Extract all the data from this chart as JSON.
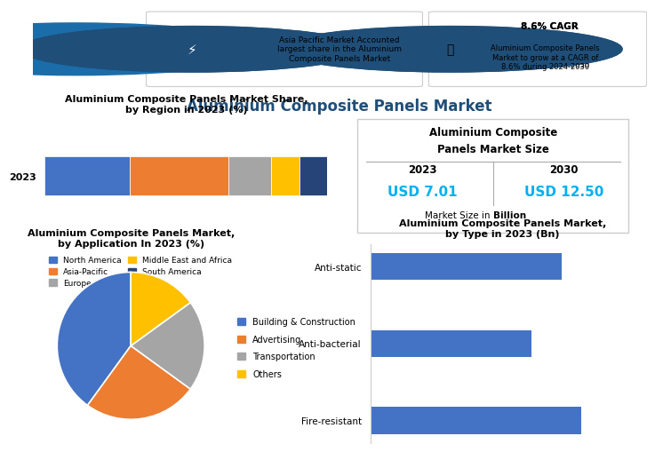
{
  "main_title": "Aluminium Composite Panels Market",
  "main_title_color": "#1F4E79",
  "background_color": "#ffffff",
  "header": {
    "lightning_text": "Asia Pacific Market Accounted\nlargest share in the Aluminium\nComposite Panels Market",
    "cagr_bold": "8.6% CAGR",
    "cagr_text": "Aluminium Composite Panels\nMarket to grow at a CAGR of\n8.6% during 2024-2030",
    "icon_color": "#1F4E79"
  },
  "stacked_bar": {
    "title": "Aluminium Composite Panels Market Share,\nby Region in 2023 (%)",
    "year_label": "2023",
    "segments": [
      {
        "label": "North America",
        "value": 30,
        "color": "#4472C4"
      },
      {
        "label": "Asia-Pacific",
        "value": 35,
        "color": "#ED7D31"
      },
      {
        "label": "Europe",
        "value": 15,
        "color": "#A5A5A5"
      },
      {
        "label": "Middle East and Africa",
        "value": 10,
        "color": "#FFC000"
      },
      {
        "label": "South America",
        "value": 10,
        "color": "#264478"
      }
    ]
  },
  "market_size": {
    "title1": "Aluminium Composite",
    "title2": "Panels Market Size",
    "year1": "2023",
    "year2": "2030",
    "val1": "USD 7.01",
    "val2": "USD 12.50",
    "note_plain": "Market Size in ",
    "note_bold": "Billion",
    "val_color": "#00B0F0"
  },
  "pie_chart": {
    "title": "Aluminium Composite Panels Market,\nby Application In 2023 (%)",
    "slices": [
      {
        "label": "Building & Construction",
        "value": 40,
        "color": "#4472C4"
      },
      {
        "label": "Advertising",
        "value": 25,
        "color": "#ED7D31"
      },
      {
        "label": "Transportation",
        "value": 20,
        "color": "#A5A5A5"
      },
      {
        "label": "Others",
        "value": 15,
        "color": "#FFC000"
      }
    ],
    "startangle": 90
  },
  "bar_chart": {
    "title": "Aluminium Composite Panels Market,\nby Type in 2023 (Bn)",
    "categories": [
      "Anti-static",
      "Anti-bacterial",
      "Fire-resistant"
    ],
    "values": [
      3.8,
      3.2,
      4.2
    ],
    "color": "#4472C4"
  }
}
